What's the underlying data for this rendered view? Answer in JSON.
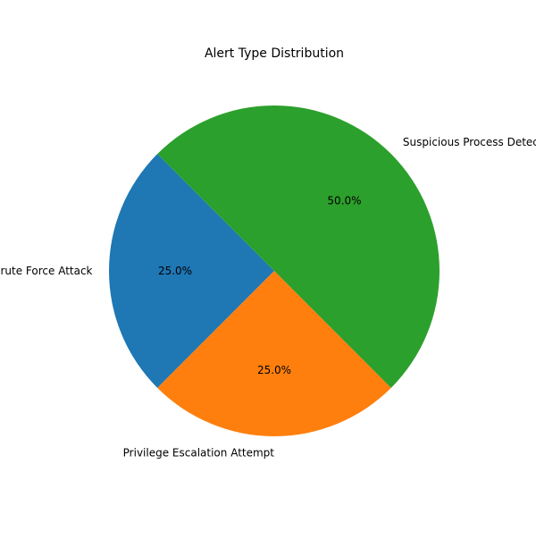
{
  "chart_data": {
    "type": "pie",
    "title": "Alert Type Distribution",
    "categories": [
      "Brute Force Attack",
      "Privilege Escalation Attempt",
      "Suspicious Process Detected"
    ],
    "values": [
      25.0,
      25.0,
      50.0
    ],
    "percent_labels": [
      "25.0%",
      "25.0%",
      "50.0%"
    ],
    "colors": [
      "#1f77b4",
      "#ff7f0e",
      "#2ca02c"
    ],
    "start_angle_deg": 135,
    "direction": "counterclockwise",
    "legend": "none"
  }
}
